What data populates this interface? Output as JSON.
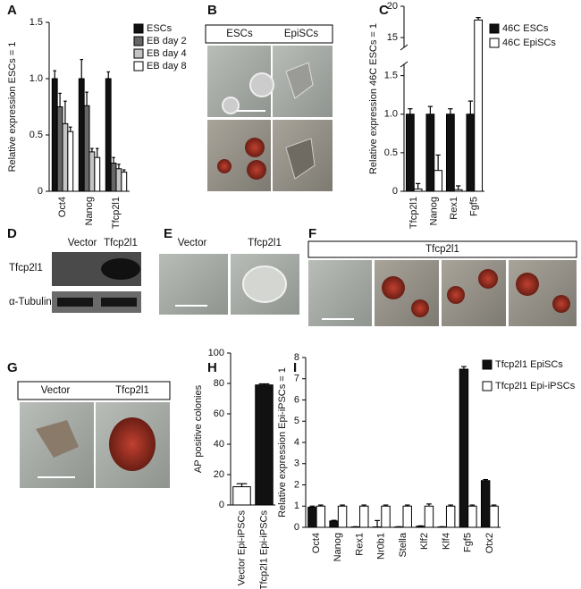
{
  "panel_letters": [
    "A",
    "B",
    "C",
    "D",
    "E",
    "F",
    "G",
    "H",
    "I"
  ],
  "images": {
    "B": {
      "headers": [
        "ESCs",
        "EpiSCs"
      ]
    },
    "D": {
      "headers": [
        "Vector",
        "Tfcp2l1"
      ],
      "rows": [
        "Tfcp2l1",
        "α-Tubulin"
      ]
    },
    "E": {
      "headers": [
        "Vector",
        "Tfcp2l1"
      ]
    },
    "F": {
      "header": "Tfcp2l1"
    },
    "G": {
      "headers": [
        "Vector",
        "Tfcp2l1"
      ]
    }
  },
  "chart_data": [
    {
      "type": "bar",
      "y_label": "Relative expression ESCs = 1",
      "categories": [
        "Oct4",
        "Nanog",
        "Tfcp2l1"
      ],
      "series": [
        {
          "name": "ESCs",
          "color": "#111111",
          "values": [
            1.0,
            1.0,
            1.0
          ],
          "errors": [
            0.07,
            0.17,
            0.06
          ]
        },
        {
          "name": "EB day 2",
          "color": "#666666",
          "values": [
            0.75,
            0.76,
            0.25
          ],
          "errors": [
            0.12,
            0.12,
            0.05
          ]
        },
        {
          "name": "EB day 4",
          "color": "#c4c4c4",
          "values": [
            0.6,
            0.35,
            0.2
          ],
          "errors": [
            0.2,
            0.03,
            0.04
          ]
        },
        {
          "name": "EB day 8",
          "color": "#ffffff",
          "values": [
            0.53,
            0.3,
            0.17
          ],
          "errors": [
            0.04,
            0.08,
            0.02
          ]
        }
      ],
      "ylim": [
        0,
        1.5
      ],
      "yticks": [
        0,
        0.5,
        {
          "value": 1,
          "label": "1.0"
        },
        1.5
      ]
    },
    {
      "type": "bar",
      "y_label": "Relative expression 46C ESCs = 1",
      "categories": [
        "Tfcp2l1",
        "Nanog",
        "Rex1",
        "Fgf5"
      ],
      "series": [
        {
          "name": "46C ESCs",
          "color": "#111111",
          "values": [
            1,
            1,
            1,
            1
          ],
          "errors": [
            0.07,
            0.1,
            0.07,
            0.17
          ]
        },
        {
          "name": "46C EpiSCs",
          "color": "#ffffff",
          "values": [
            0.03,
            0.27,
            0.02,
            17.8
          ],
          "errors": [
            0.07,
            0.2,
            0.05,
            0.4
          ]
        }
      ],
      "ylim": [
        0,
        20
      ],
      "axis_break": [
        1.6,
        14
      ],
      "yticks": [
        0,
        0.5,
        {
          "value": 1,
          "label": "1.0"
        },
        1.5,
        15,
        20
      ]
    },
    {
      "type": "bar",
      "y_label": "AP positive colonies",
      "categories": [
        "Vector Epi-iPSCs",
        "Tfcp2l1 Epi-iPSCs"
      ],
      "values": [
        12,
        79
      ],
      "errors": [
        2,
        0.7
      ],
      "colors": [
        "#ffffff",
        "#111111"
      ],
      "ylim": [
        0,
        100
      ],
      "yticks": [
        0,
        20,
        40,
        60,
        80,
        100
      ]
    },
    {
      "type": "bar",
      "y_label": "Relative expression Epi-iPSCs = 1",
      "categories": [
        "Oct4",
        "Nanog",
        "Rex1",
        "Nr0b1",
        "Stella",
        "Klf2",
        "Klf4",
        "Fgf5",
        "Otx2"
      ],
      "series": [
        {
          "name": "Tfcp2l1 EpiSCs",
          "color": "#111111",
          "values": [
            0.95,
            0.3,
            0.02,
            0.02,
            0.02,
            0.05,
            0.02,
            7.45,
            2.2
          ],
          "errors": [
            0.05,
            0.03,
            0.01,
            0.3,
            0.01,
            0.02,
            0.01,
            0.12,
            0.05
          ]
        },
        {
          "name": "Tfcp2l1 Epi-iPSCs",
          "color": "#ffffff",
          "values": [
            1,
            1,
            1,
            1,
            1,
            1,
            1,
            1,
            1
          ],
          "errors": [
            0.05,
            0.05,
            0.05,
            0.05,
            0.05,
            0.1,
            0.05,
            0.05,
            0.05
          ]
        }
      ],
      "ylim": [
        0,
        8
      ],
      "yticks": [
        0,
        1,
        2,
        3,
        4,
        5,
        6,
        7,
        8
      ]
    }
  ]
}
